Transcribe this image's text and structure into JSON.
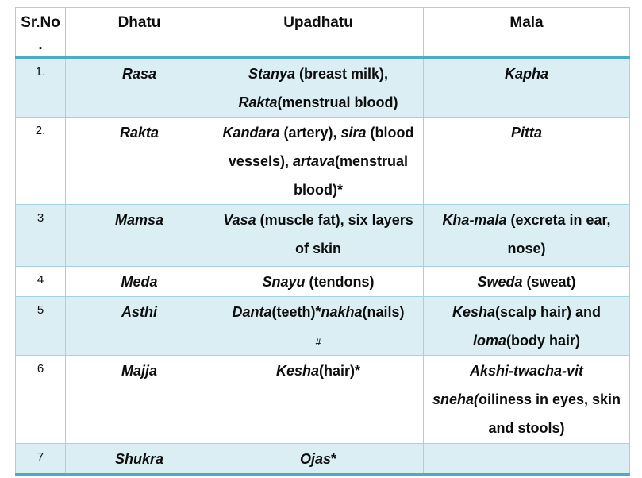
{
  "theme": {
    "accent_border": "#4bacc6",
    "grid_border": "#a6d1df",
    "shaded_row_fill": "#daeef3",
    "text_color": "#0d0d0d"
  },
  "header": {
    "srno_line1": "Sr.No",
    "srno_line2": ".",
    "dhatu": "Dhatu",
    "upadhatu": "Upadhatu",
    "mala": "Mala"
  },
  "rows": [
    {
      "no": "1.",
      "dhatu": "Rasa",
      "upadhatu": [
        {
          "t": "Stanya",
          "i": true
        },
        {
          "t": " (breast milk), ",
          "i": false
        },
        {
          "t": "Rakta",
          "i": true
        },
        {
          "t": "(menstrual blood)",
          "i": false
        }
      ],
      "mala": [
        {
          "t": "Kapha",
          "i": true
        }
      ]
    },
    {
      "no": "2.",
      "dhatu": "Rakta",
      "upadhatu": [
        {
          "t": "Kandara",
          "i": true
        },
        {
          "t": " (artery), ",
          "i": false
        },
        {
          "t": "sira",
          "i": true
        },
        {
          "t": " (blood vessels), ",
          "i": false
        },
        {
          "t": "artava",
          "i": true
        },
        {
          "t": "(menstrual blood)*",
          "i": false
        }
      ],
      "mala": [
        {
          "t": "Pitta",
          "i": true
        }
      ]
    },
    {
      "no": "3",
      "dhatu": "Mamsa",
      "upadhatu": [
        {
          "t": "Vasa",
          "i": true
        },
        {
          "t": " (muscle fat), six layers of skin",
          "i": false
        }
      ],
      "mala": [
        {
          "t": "Kha-mala",
          "i": true
        },
        {
          "t": " (excreta in ear, nose)",
          "i": false
        }
      ]
    },
    {
      "no": "4",
      "dhatu": "Meda",
      "upadhatu": [
        {
          "t": "Snayu",
          "i": true
        },
        {
          "t": " (tendons)",
          "i": false
        }
      ],
      "mala": [
        {
          "t": "Sweda",
          "i": true
        },
        {
          "t": " (sweat)",
          "i": false
        }
      ]
    },
    {
      "no": "5",
      "dhatu": "Asthi",
      "upadhatu": [
        {
          "t": "Danta",
          "i": true
        },
        {
          "t": "(teeth)*",
          "i": false
        },
        {
          "t": "nakha",
          "i": true
        },
        {
          "t": "(nails)",
          "i": false
        },
        {
          "t": "#",
          "i": false,
          "br": true,
          "small": true
        }
      ],
      "mala": [
        {
          "t": "Kesha",
          "i": true
        },
        {
          "t": "(scalp hair) and ",
          "i": false
        },
        {
          "t": "loma",
          "i": true
        },
        {
          "t": "(body hair)",
          "i": false
        }
      ]
    },
    {
      "no": "6",
      "dhatu": "Majja",
      "upadhatu": [
        {
          "t": "Kesha",
          "i": true
        },
        {
          "t": "(hair)*",
          "i": false
        }
      ],
      "mala": [
        {
          "t": "Akshi-twacha-vit sneha(",
          "i": true
        },
        {
          "t": "oiliness in eyes, skin and stools)",
          "i": false
        }
      ]
    },
    {
      "no": "7",
      "dhatu": "Shukra",
      "upadhatu": [
        {
          "t": "Ojas",
          "i": true
        },
        {
          "t": "*",
          "i": false
        }
      ],
      "mala": []
    }
  ]
}
